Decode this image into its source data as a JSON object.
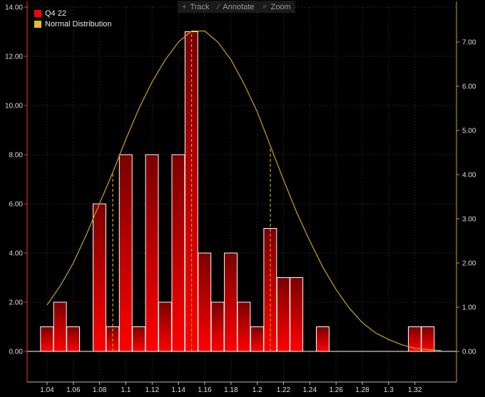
{
  "toolbar": {
    "track_label": "Track",
    "annotate_label": "Annotate",
    "zoom_label": "Zoom"
  },
  "chart_data": {
    "type": "bar",
    "legend_position": "top-left",
    "grid": true,
    "series": [
      {
        "name": "Q4 22",
        "type": "histogram",
        "color": "#ff0000",
        "axis": "left",
        "bin_width": 0.01,
        "x": [
          1.04,
          1.05,
          1.06,
          1.07,
          1.08,
          1.09,
          1.1,
          1.11,
          1.12,
          1.13,
          1.14,
          1.15,
          1.16,
          1.17,
          1.18,
          1.19,
          1.2,
          1.21,
          1.22,
          1.23,
          1.24,
          1.25,
          1.26,
          1.27,
          1.28,
          1.29,
          1.3,
          1.31,
          1.32,
          1.33
        ],
        "values": [
          1,
          2,
          1,
          0,
          6,
          1,
          8,
          1,
          8,
          2,
          8,
          13,
          4,
          2,
          4,
          2,
          1,
          5,
          3,
          3,
          0,
          1,
          0,
          0,
          0,
          0,
          0,
          0,
          1,
          1
        ]
      },
      {
        "name": "Normal Distribution",
        "type": "line",
        "color": "#c9a227",
        "axis": "right",
        "x": [
          1.04,
          1.05,
          1.06,
          1.07,
          1.08,
          1.09,
          1.1,
          1.11,
          1.12,
          1.13,
          1.14,
          1.15,
          1.16,
          1.17,
          1.18,
          1.19,
          1.2,
          1.21,
          1.22,
          1.23,
          1.24,
          1.25,
          1.26,
          1.27,
          1.28,
          1.29,
          1.3,
          1.31,
          1.32,
          1.33,
          1.34
        ],
        "values": [
          1.05,
          1.48,
          2.0,
          2.65,
          3.35,
          4.05,
          4.8,
          5.5,
          6.1,
          6.6,
          7.0,
          7.25,
          7.25,
          7.0,
          6.6,
          6.05,
          5.42,
          4.65,
          3.88,
          3.15,
          2.5,
          1.9,
          1.4,
          0.98,
          0.65,
          0.42,
          0.27,
          0.15,
          0.07,
          0.04,
          0.02
        ]
      }
    ],
    "markers": {
      "x": [
        1.09,
        1.15,
        1.21
      ],
      "style": "dashed",
      "color": "#c9a227"
    },
    "x_axis": {
      "ticks": [
        1.04,
        1.06,
        1.08,
        1.1,
        1.12,
        1.14,
        1.16,
        1.18,
        1.2,
        1.22,
        1.24,
        1.26,
        1.28,
        1.3,
        1.32
      ],
      "tick_labels": [
        "1.04",
        "1.06",
        "1.08",
        "1.1",
        "1.12",
        "1.14",
        "1.16",
        "1.18",
        "1.2",
        "1.22",
        "1.24",
        "1.26",
        "1.28",
        "1.3",
        "1.32"
      ]
    },
    "y_left": {
      "ylim": [
        0,
        14
      ],
      "ticks": [
        0,
        2,
        4,
        6,
        8,
        10,
        12,
        14
      ],
      "tick_labels": [
        "0.00",
        "2.00",
        "4.00",
        "6.00",
        "8.00",
        "10.00",
        "12.00",
        "14.00"
      ],
      "color": "#ff3333"
    },
    "y_right": {
      "ylim": [
        0,
        7.8
      ],
      "ticks": [
        0,
        1,
        2,
        3,
        4,
        5,
        6,
        7
      ],
      "tick_labels": [
        "0.00",
        "1.00",
        "2.00",
        "3.00",
        "4.00",
        "5.00",
        "6.00",
        "7.00"
      ],
      "color": "#c9a227"
    }
  }
}
